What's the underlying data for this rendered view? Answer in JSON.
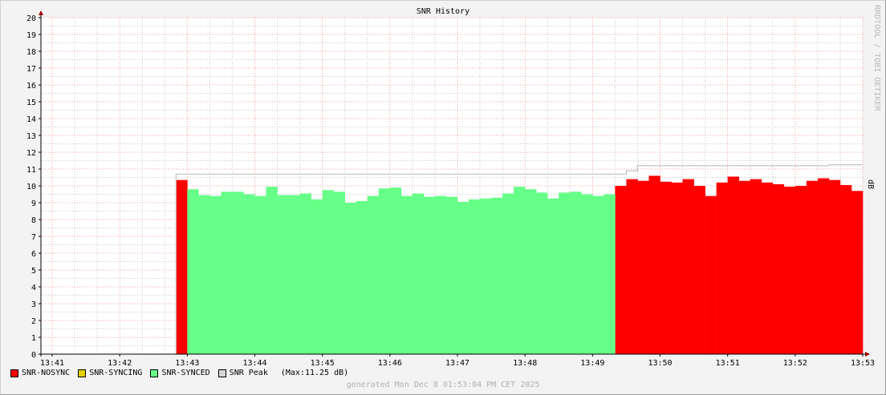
{
  "chart_data": {
    "type": "area",
    "title": "SNR History",
    "ylabel": "dB",
    "watermark": "RRDTOOL / TOBI OETIKER",
    "ylim": [
      0,
      20
    ],
    "xlim": [
      "13:40:50",
      "13:53:00"
    ],
    "x_ticks": [
      "13:41",
      "13:42",
      "13:43",
      "13:44",
      "13:45",
      "13:46",
      "13:47",
      "13:48",
      "13:49",
      "13:50",
      "13:51",
      "13:52",
      "13:53"
    ],
    "y_ticks": [
      0,
      1,
      2,
      3,
      4,
      5,
      6,
      7,
      8,
      9,
      10,
      11,
      12,
      13,
      14,
      15,
      16,
      17,
      18,
      19,
      20
    ],
    "grid": true,
    "step_seconds": 10,
    "series": [
      {
        "name": "SNR-NOSYNC",
        "color": "#ff0000",
        "segments": [
          {
            "start": "13:42:50",
            "values": [
              10.35
            ]
          },
          {
            "start": "13:49:20",
            "values": [
              10.0,
              10.4,
              10.3,
              10.6,
              10.25,
              10.2,
              10.4,
              10.0,
              9.4,
              10.2,
              10.55,
              10.3,
              10.4,
              10.2,
              10.1,
              9.95,
              10.0,
              10.3,
              10.45,
              10.35,
              10.05,
              9.7
            ]
          }
        ]
      },
      {
        "name": "SNR-SYNCING",
        "color": "#e0d000",
        "segments": []
      },
      {
        "name": "SNR-SYNCED",
        "color": "#66ff88",
        "segments": [
          {
            "start": "13:43:00",
            "values": [
              9.8,
              9.45,
              9.4,
              9.65,
              9.65,
              9.5,
              9.4,
              9.95,
              9.45,
              9.45,
              9.55,
              9.2,
              9.75,
              9.65,
              9.0,
              9.1,
              9.4,
              9.85,
              9.9,
              9.4,
              9.55,
              9.35,
              9.4,
              9.35,
              9.05,
              9.2,
              9.25,
              9.3,
              9.55,
              9.95,
              9.8,
              9.6,
              9.25,
              9.6,
              9.65,
              9.5,
              9.4,
              9.5
            ]
          }
        ]
      },
      {
        "name": "SNR Peak",
        "color": "#c8c8c8",
        "type": "step-line",
        "points": [
          [
            "13:42:50",
            10.7
          ],
          [
            "13:49:30",
            10.9
          ],
          [
            "13:49:40",
            11.2
          ],
          [
            "13:52:30",
            11.25
          ],
          [
            "13:53:00",
            11.25
          ]
        ]
      }
    ],
    "legend_position": "bottom-left",
    "peak_note": "(Max:11.25 dB)"
  },
  "footer": "generated Mon Dec  8 01:53:04 PM CET 2025"
}
